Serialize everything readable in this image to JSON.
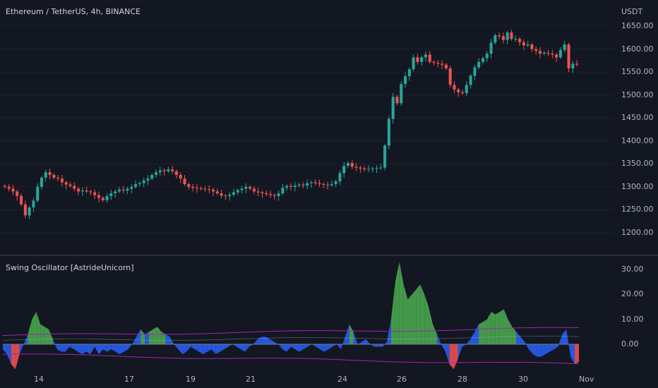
{
  "chart_title": "Ethereum / TetherUS, 4h, BINANCE",
  "currency": "USDT",
  "indicator_title": "Swing Oscillator [AstrideUnicorn]",
  "colors": {
    "background": "#131722",
    "up": "#26a69a",
    "down": "#ef5350",
    "osc_green": "#4caf50",
    "osc_blue": "#2962ff",
    "osc_red": "#ff5252",
    "band": "#9c27b0",
    "zero": "#787b86",
    "text": "#b2b5be"
  },
  "chart_data": [
    {
      "type": "candlestick",
      "title": "Ethereum / TetherUS, 4h, BINANCE",
      "ylabel": "USDT",
      "ylim": [
        1170,
        1670
      ],
      "yticks": [
        "1650.00",
        "1600.00",
        "1550.00",
        "1500.00",
        "1450.00",
        "1400.00",
        "1350.00",
        "1300.00",
        "1250.00",
        "1200.00"
      ],
      "xticks": [
        "14",
        "17",
        "19",
        "21",
        "24",
        "26",
        "28",
        "30",
        "Nov"
      ],
      "close": [
        1300,
        1296,
        1290,
        1280,
        1262,
        1238,
        1255,
        1270,
        1300,
        1320,
        1332,
        1326,
        1320,
        1318,
        1310,
        1305,
        1302,
        1296,
        1290,
        1292,
        1290,
        1288,
        1282,
        1276,
        1271,
        1280,
        1286,
        1290,
        1294,
        1292,
        1296,
        1300,
        1306,
        1308,
        1314,
        1318,
        1326,
        1332,
        1336,
        1334,
        1338,
        1334,
        1326,
        1318,
        1306,
        1300,
        1298,
        1297,
        1296,
        1295,
        1294,
        1290,
        1286,
        1281,
        1280,
        1283,
        1288,
        1293,
        1296,
        1300,
        1296,
        1290,
        1288,
        1286,
        1284,
        1282,
        1280,
        1286,
        1298,
        1302,
        1300,
        1303,
        1305,
        1303,
        1308,
        1310,
        1308,
        1306,
        1305,
        1304,
        1306,
        1312,
        1330,
        1346,
        1352,
        1344,
        1342,
        1340,
        1338,
        1339,
        1340,
        1341,
        1342,
        1390,
        1448,
        1496,
        1482,
        1524,
        1541,
        1556,
        1582,
        1572,
        1582,
        1588,
        1572,
        1570,
        1568,
        1566,
        1558,
        1522,
        1512,
        1506,
        1504,
        1522,
        1542,
        1560,
        1572,
        1580,
        1590,
        1614,
        1630,
        1628,
        1620,
        1636,
        1622,
        1622,
        1615,
        1608,
        1610,
        1600,
        1596,
        1590,
        1592,
        1590,
        1588,
        1582,
        1598,
        1610,
        1558,
        1568,
        1566
      ]
    },
    {
      "type": "area",
      "title": "Swing Oscillator [AstrideUnicorn]",
      "ylim": [
        -10,
        35
      ],
      "yticks": [
        "30.00",
        "20.00",
        "10.00",
        "0.00"
      ],
      "values": [
        -2,
        -4,
        -8,
        -10,
        -4,
        0,
        4,
        10,
        13,
        8,
        7,
        6,
        2,
        -2,
        -3,
        -3,
        -1,
        -2,
        -3,
        -4,
        -3,
        -4,
        -1,
        -4,
        -2,
        -3,
        -2,
        -3,
        -4,
        -3,
        -2,
        0,
        3,
        6,
        4,
        5,
        6,
        7,
        5,
        4,
        3,
        0,
        -2,
        -4,
        -3,
        -1,
        -2,
        -3,
        -4,
        -3,
        -2,
        -4,
        -3,
        -2,
        -1,
        0,
        -1,
        -2,
        -3,
        -1,
        0,
        2,
        3,
        3,
        2,
        1,
        0,
        -2,
        -3,
        -1,
        -2,
        -3,
        -2,
        -1,
        0,
        -1,
        -2,
        -3,
        -2,
        -1,
        0,
        -2,
        3,
        8,
        5,
        0,
        1,
        2,
        0,
        -1,
        -1,
        -1,
        1,
        10,
        25,
        33,
        24,
        18,
        20,
        22,
        24,
        20,
        15,
        8,
        4,
        0,
        -3,
        -8,
        -10,
        -6,
        -1,
        0,
        2,
        5,
        8,
        9,
        10,
        13,
        12,
        13,
        14,
        10,
        7,
        5,
        3,
        1,
        -2,
        -4,
        -5,
        -5,
        -4,
        -3,
        -2,
        -1,
        4,
        6,
        -5,
        -8,
        -7
      ],
      "band_upper": [
        3.5,
        6.5
      ],
      "band_lower": [
        -4,
        -8
      ]
    }
  ]
}
